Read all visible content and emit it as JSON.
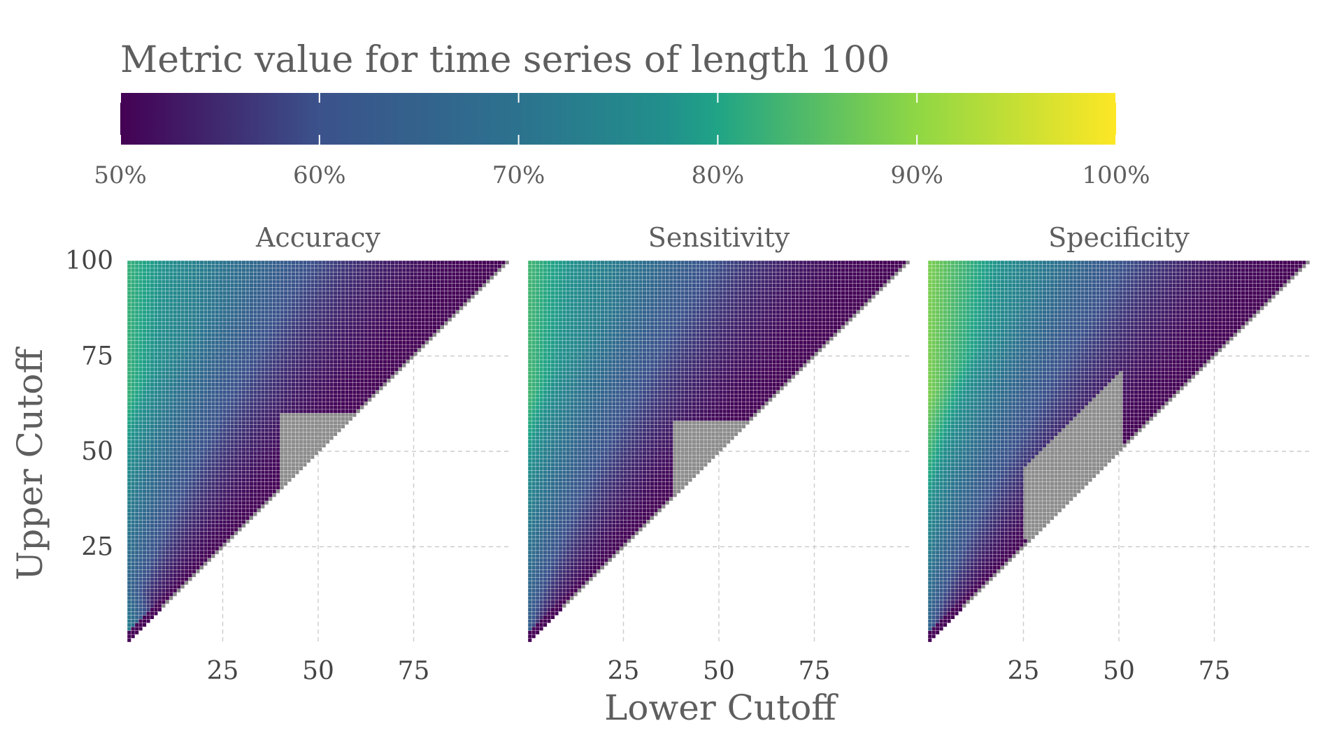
{
  "chart_data": {
    "type": "heatmap",
    "legend": {
      "title": "Metric value for time series of length 100",
      "ticks": [
        "50%",
        "60%",
        "70%",
        "80%",
        "90%",
        "100%"
      ],
      "tick_values": [
        50,
        60,
        70,
        80,
        90,
        100
      ],
      "range": [
        50,
        100
      ],
      "palette": [
        "#440154",
        "#3b528b",
        "#21908c",
        "#20a486",
        "#5dc863",
        "#8fd744",
        "#fde725"
      ],
      "placement": "top"
    },
    "xlabel": "Lower Cutoff",
    "ylabel": "Upper Cutoff",
    "x_ticks": [
      "25",
      "50",
      "75"
    ],
    "x_tick_values": [
      25,
      50,
      75
    ],
    "y_ticks": [
      "25",
      "50",
      "75",
      "100"
    ],
    "y_tick_values": [
      25,
      50,
      75,
      100
    ],
    "xlim": [
      0,
      100
    ],
    "ylim": [
      0,
      100
    ],
    "grid": true,
    "na_color": "#8c8c8c",
    "panels": [
      {
        "title": "Accuracy",
        "description_values": {
          "corner_low_x_low_y": 75,
          "left_edge_high": 82,
          "interior_min": 50,
          "diagonal": 50
        },
        "missing_region": {
          "x_range": [
            40,
            58
          ],
          "y_range": [
            42,
            60
          ]
        }
      },
      {
        "title": "Sensitivity",
        "description_values": {
          "left_edge_high": 83,
          "interior_min": 50,
          "diagonal": 50
        },
        "missing_region": {
          "x_range": [
            38,
            62
          ],
          "y_range": [
            38,
            58
          ]
        }
      },
      {
        "title": "Specificity",
        "description_values": {
          "left_edge_high": 88,
          "interior_min": 50,
          "diagonal": 50
        },
        "missing_region": {
          "x_range": [
            25,
            50
          ],
          "y_range": [
            28,
            72
          ]
        }
      }
    ]
  }
}
